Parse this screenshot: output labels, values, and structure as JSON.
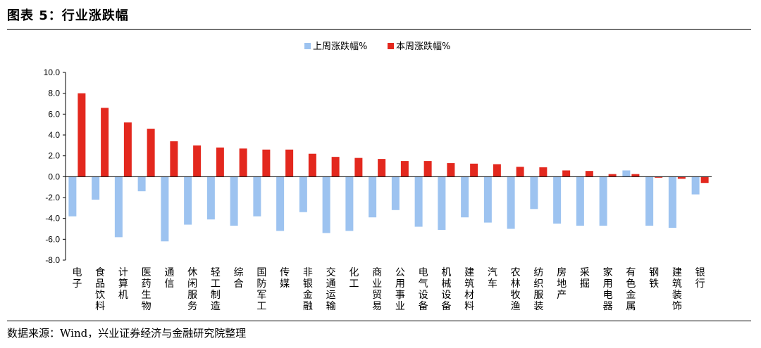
{
  "figure": {
    "title": "图表 5：行业涨跌幅",
    "source": "数据来源：Wind，兴业证券经济与金融研究院整理"
  },
  "chart_data": {
    "type": "bar",
    "categories": [
      "电子",
      "食品饮料",
      "计算机",
      "医药生物",
      "通信",
      "休闲服务",
      "轻工制造",
      "综合",
      "国防军工",
      "传媒",
      "非银金融",
      "交通运输",
      "化工",
      "商业贸易",
      "公用事业",
      "电气设备",
      "机械设备",
      "建筑材料",
      "汽车",
      "农林牧渔",
      "纺织服装",
      "房地产",
      "采掘",
      "家用电器",
      "有色金属",
      "钢铁",
      "建筑装饰",
      "银行"
    ],
    "series": [
      {
        "name": "上周涨跌幅%",
        "color": "#9dc3f0",
        "values": [
          -3.8,
          -2.2,
          -5.8,
          -1.4,
          -6.2,
          -4.6,
          -4.1,
          -4.7,
          -3.8,
          -5.2,
          -3.4,
          -5.4,
          -5.2,
          -3.9,
          -3.2,
          -4.8,
          -5.1,
          -3.9,
          -4.4,
          -5.0,
          -3.1,
          -4.5,
          -4.7,
          -4.7,
          0.6,
          -4.7,
          -4.9,
          -1.7
        ]
      },
      {
        "name": "本周涨跌幅%",
        "color": "#e3281e",
        "values": [
          8.0,
          6.6,
          5.2,
          4.6,
          3.4,
          3.0,
          2.8,
          2.7,
          2.6,
          2.6,
          2.2,
          1.9,
          1.8,
          1.7,
          1.5,
          1.5,
          1.3,
          1.25,
          1.2,
          0.95,
          0.9,
          0.6,
          0.55,
          0.25,
          0.25,
          -0.1,
          -0.2,
          -0.6
        ]
      }
    ],
    "yticks": [
      "10.0",
      "8.0",
      "6.0",
      "4.0",
      "2.0",
      "0.0",
      "-2.0",
      "-4.0",
      "-6.0",
      "-8.0"
    ],
    "ylim": [
      -8,
      10
    ],
    "legend_position": "top-center",
    "grid": false
  }
}
